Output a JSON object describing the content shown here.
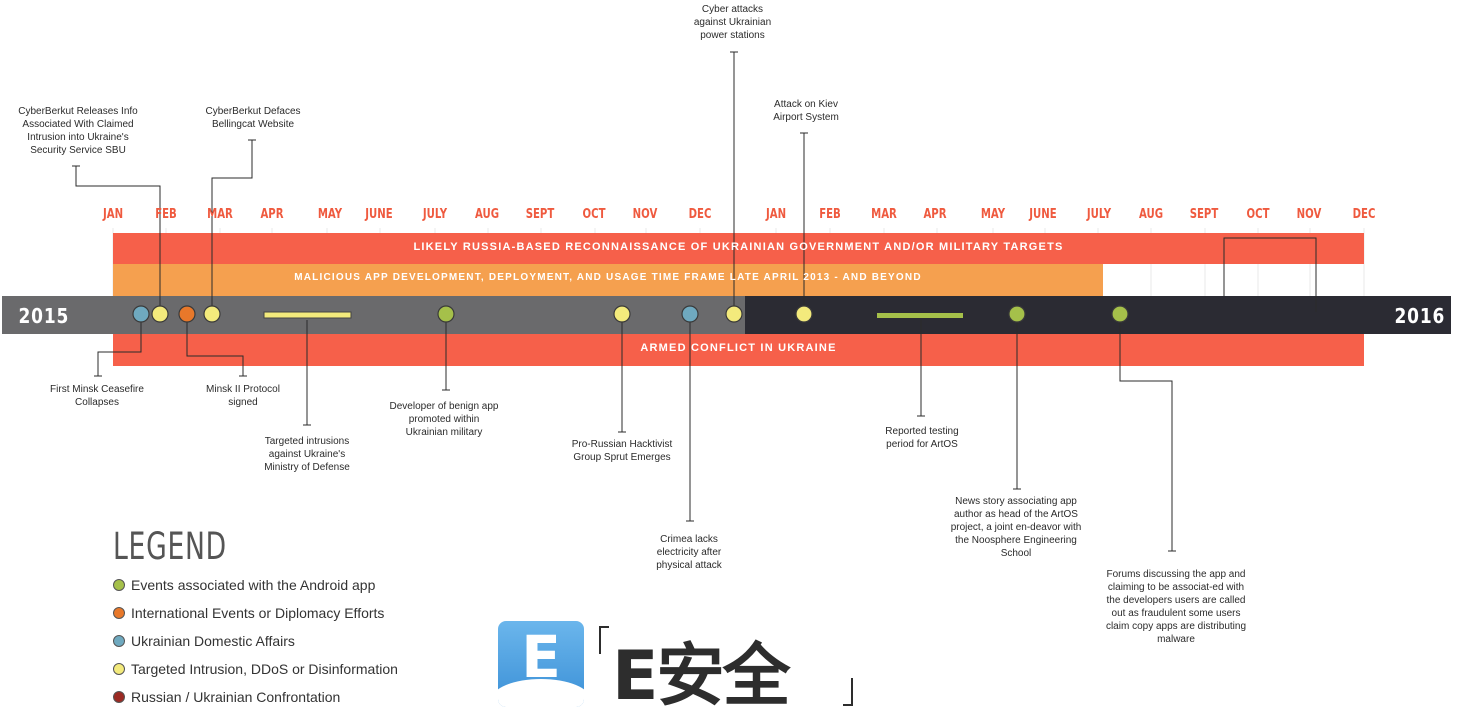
{
  "months_2015": [
    "JAN",
    "FEB",
    "MAR",
    "APR",
    "MAY",
    "JUNE",
    "JULY",
    "AUG",
    "SEPT",
    "OCT",
    "NOV",
    "DEC"
  ],
  "months_2016": [
    "JAN",
    "FEB",
    "MAR",
    "APR",
    "MAY",
    "JUNE",
    "JULY",
    "AUG",
    "SEPT",
    "OCT",
    "NOV",
    "DEC"
  ],
  "years": {
    "start": "2015",
    "end": "2016"
  },
  "bands": {
    "reconnaissance": "LIKELY RUSSIA-BASED RECONNAISSANCE OF UKRAINIAN GOVERNMENT AND/OR MILITARY TARGETS",
    "malicious_app": "MALICIOUS APP DEVELOPMENT, DEPLOYMENT, AND USAGE TIME FRAME LATE APRIL 2013 - AND BEYOND",
    "armed_conflict": "ARMED CONFLICT IN UKRAINE"
  },
  "events": [
    {
      "text": "CyberBerkut Releases Info Associated With Claimed Intrusion into Ukraine's Security Service SBU",
      "category": "disinformation"
    },
    {
      "text": "CyberBerkut Defaces Bellingcat Website",
      "category": "disinformation"
    },
    {
      "text": "Cyber attacks against Ukrainian power stations",
      "category": "disinformation"
    },
    {
      "text": "Attack on Kiev Airport System",
      "category": "disinformation"
    },
    {
      "text": "First Minsk Ceasefire Collapses",
      "category": "domestic"
    },
    {
      "text": "Minsk II Protocol signed",
      "category": "international"
    },
    {
      "text": "Targeted intrusions against Ukraine's Ministry of Defense",
      "category": "disinformation"
    },
    {
      "text": "Developer of benign app promoted within Ukrainian military",
      "category": "android"
    },
    {
      "text": "Pro-Russian Hacktivist Group Sprut Emerges",
      "category": "disinformation"
    },
    {
      "text": "Crimea lacks electricity after physical attack",
      "category": "domestic"
    },
    {
      "text": "Reported testing period for ArtOS",
      "category": "android"
    },
    {
      "text": "News story associating app author as head of the ArtOS project, a joint en-deavor with the Noosphere Engineering School",
      "category": "android"
    },
    {
      "text": "Forums discussing the app and claiming to be associat-ed with the developers users are called out as fraudulent some users claim copy apps are distributing malware",
      "category": "android"
    }
  ],
  "legend": {
    "title": "LEGEND",
    "items": [
      {
        "label": "Events associated with the Android app",
        "color": "#a5c04a"
      },
      {
        "label": "International Events or Diplomacy Efforts",
        "color": "#e8782a"
      },
      {
        "label": "Ukrainian Domestic Affairs",
        "color": "#6fa9bf"
      },
      {
        "label": "Targeted Intrusion, DDoS or Disinformation",
        "color": "#f3ea7c"
      },
      {
        "label": "Russian / Ukrainian Confrontation",
        "color": "#9b2a23"
      }
    ]
  },
  "logo": {
    "text": "E安全",
    "letter": "E"
  },
  "colors": {
    "red_band": "#f6604a",
    "orange_band": "#f5a04f",
    "gray_bar": "#6a6a6c",
    "dark_bar": "#2b2b33",
    "month_text": "#ef5a3f"
  }
}
